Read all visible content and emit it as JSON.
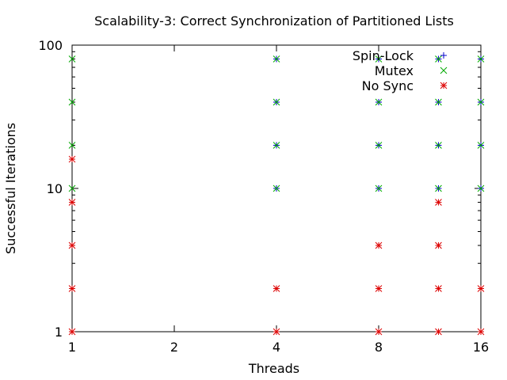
{
  "chart_data": {
    "type": "scatter",
    "title": "Scalability-3: Correct Synchronization of Partitioned Lists",
    "xlabel": "Threads",
    "ylabel": "Successful Iterations",
    "x_scale": "log2",
    "y_scale": "log10",
    "xlim": [
      1,
      16
    ],
    "ylim": [
      1,
      100
    ],
    "x_ticks": [
      1,
      2,
      4,
      8,
      16
    ],
    "x_tick_labels": [
      "1",
      "2",
      "4",
      "8",
      "16"
    ],
    "y_ticks": [
      1,
      10,
      100
    ],
    "y_tick_labels": [
      "1",
      "10",
      "100"
    ],
    "grid": false,
    "legend_position": "top-right",
    "series": [
      {
        "name": "Spin-Lock",
        "marker": "plus",
        "color": "#0000cc",
        "points": [
          [
            4,
            10
          ],
          [
            4,
            20
          ],
          [
            4,
            40
          ],
          [
            4,
            80
          ],
          [
            8,
            10
          ],
          [
            8,
            20
          ],
          [
            8,
            40
          ],
          [
            8,
            80
          ],
          [
            12,
            10
          ],
          [
            12,
            20
          ],
          [
            12,
            40
          ],
          [
            12,
            80
          ],
          [
            16,
            10
          ],
          [
            16,
            20
          ],
          [
            16,
            40
          ],
          [
            16,
            80
          ]
        ]
      },
      {
        "name": "Mutex",
        "marker": "cross",
        "color": "#00aa00",
        "points": [
          [
            1,
            10
          ],
          [
            1,
            20
          ],
          [
            1,
            40
          ],
          [
            1,
            80
          ],
          [
            4,
            10
          ],
          [
            4,
            20
          ],
          [
            4,
            40
          ],
          [
            4,
            80
          ],
          [
            8,
            10
          ],
          [
            8,
            20
          ],
          [
            8,
            40
          ],
          [
            8,
            80
          ],
          [
            12,
            10
          ],
          [
            12,
            20
          ],
          [
            12,
            40
          ],
          [
            12,
            80
          ],
          [
            16,
            10
          ],
          [
            16,
            20
          ],
          [
            16,
            40
          ],
          [
            16,
            80
          ]
        ]
      },
      {
        "name": "No Sync",
        "marker": "asterisk",
        "color": "#dd0000",
        "points": [
          [
            1,
            1
          ],
          [
            1,
            2
          ],
          [
            1,
            4
          ],
          [
            1,
            8
          ],
          [
            1,
            16
          ],
          [
            4,
            1
          ],
          [
            4,
            2
          ],
          [
            8,
            1
          ],
          [
            8,
            2
          ],
          [
            8,
            4
          ],
          [
            12,
            1
          ],
          [
            12,
            2
          ],
          [
            12,
            4
          ],
          [
            12,
            8
          ],
          [
            16,
            1
          ],
          [
            16,
            2
          ]
        ]
      }
    ]
  }
}
